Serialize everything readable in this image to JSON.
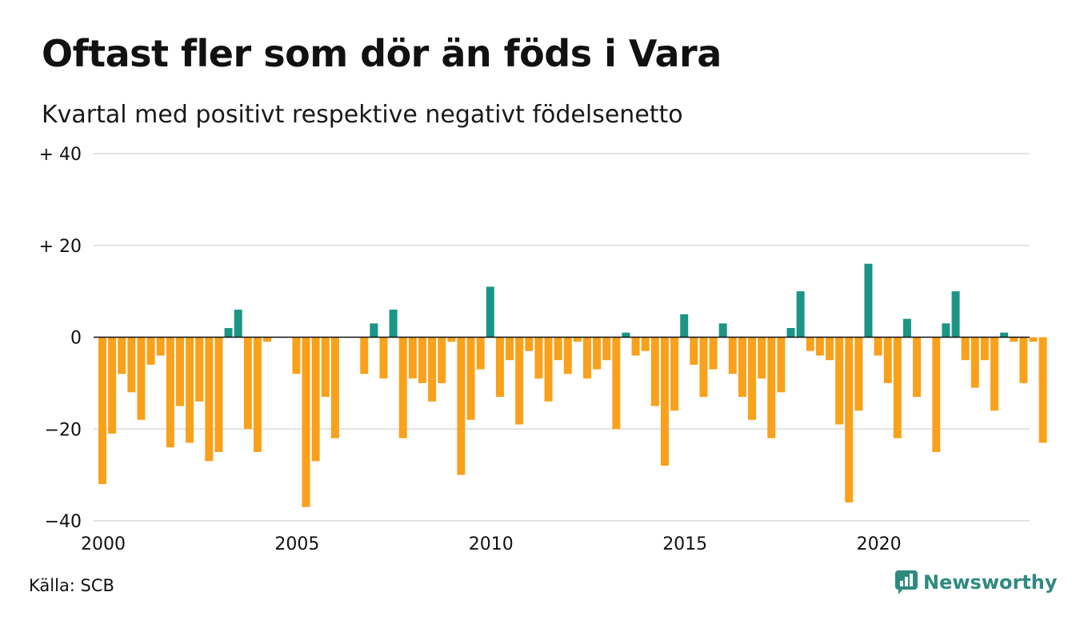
{
  "chart_data": {
    "type": "bar",
    "title": "Oftast fler som dör än föds i Vara",
    "subtitle": "Kvartal med positivt respektive negativt födelsenetto",
    "xlabel": "",
    "ylabel": "",
    "ylim": [
      -40,
      40
    ],
    "y_ticks": [
      {
        "value": 40,
        "label": "+ 40"
      },
      {
        "value": 20,
        "label": "+ 20"
      },
      {
        "value": 0,
        "label": "0"
      },
      {
        "value": -20,
        "label": "−20"
      },
      {
        "value": -40,
        "label": "−40"
      }
    ],
    "x_ticks": [
      {
        "year": 2000,
        "label": "2000"
      },
      {
        "year": 2005,
        "label": "2005"
      },
      {
        "year": 2010,
        "label": "2010"
      },
      {
        "year": 2015,
        "label": "2015"
      },
      {
        "year": 2020,
        "label": "2020"
      }
    ],
    "first_quarter": "2000 Q1",
    "colors": {
      "positive": "#1b9585",
      "negative": "#f9a11b"
    },
    "values": [
      -32,
      -21,
      -8,
      -12,
      -18,
      -6,
      -4,
      -24,
      -15,
      -23,
      -14,
      -27,
      -25,
      2,
      6,
      -20,
      -25,
      -1,
      0,
      0,
      -8,
      -37,
      -27,
      -13,
      -22,
      0,
      0,
      -8,
      3,
      -9,
      6,
      -22,
      -9,
      -10,
      -14,
      -10,
      -1,
      -30,
      -18,
      -7,
      11,
      -13,
      -5,
      -19,
      -3,
      -9,
      -14,
      -5,
      -8,
      -1,
      -9,
      -7,
      -5,
      -20,
      1,
      -4,
      -3,
      -15,
      -28,
      -16,
      5,
      -6,
      -13,
      -7,
      3,
      -8,
      -13,
      -18,
      -9,
      -22,
      -12,
      2,
      10,
      -3,
      -4,
      -5,
      -19,
      -36,
      -16,
      16,
      -4,
      -10,
      -22,
      4,
      -13,
      0,
      -25,
      3,
      10,
      -5,
      -11,
      -5,
      -16,
      1,
      -1,
      -10,
      -1,
      -23
    ]
  },
  "source": "Källa: SCB",
  "brand": {
    "name": "Newsworthy",
    "logo_icon": "newsworthy-chart-bubble-icon"
  }
}
